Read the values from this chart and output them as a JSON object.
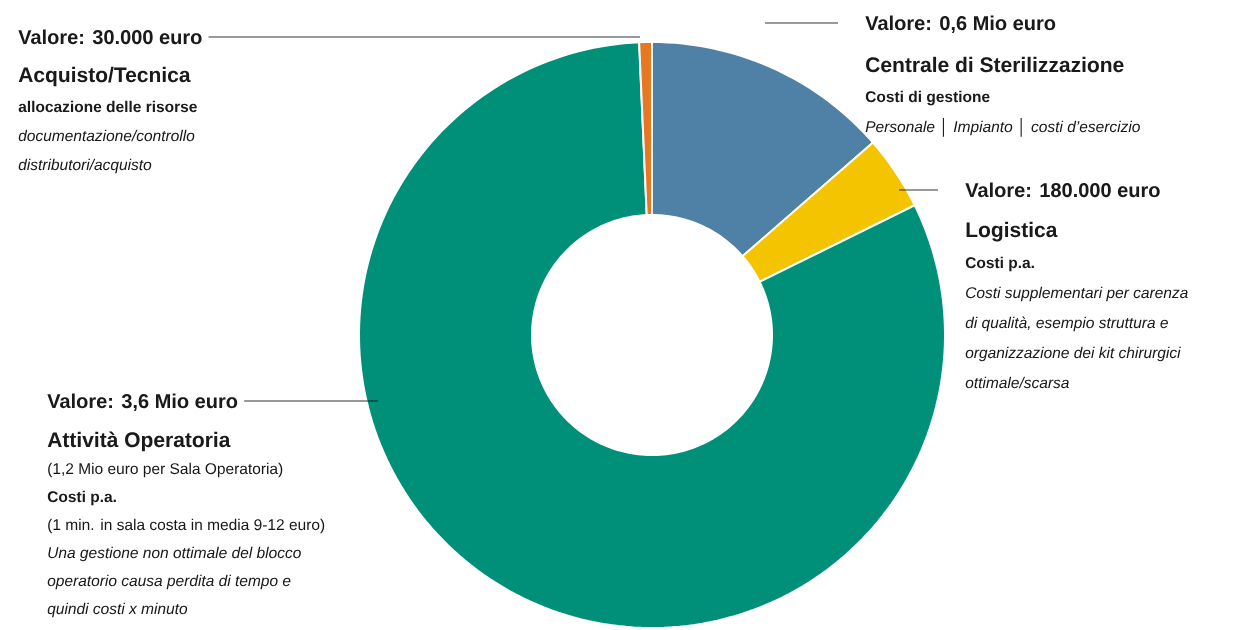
{
  "chart_data": {
    "type": "donut",
    "categories": [
      null,
      null,
      null,
      null
    ],
    "values": [
      13.6,
      4.1,
      81.6,
      0.7
    ],
    "colors": [
      "#4f81a6",
      "#f5c400",
      "#00907a",
      "#e87722"
    ],
    "annotations": [
      "Valore: 30.000 euro",
      "Acquisto/Tecnica",
      "allocazione delle risorse",
      "documentazione/controllo",
      "distributori/acquisto",
      "Valore: 0,6 Mio euro",
      "Centrale di Sterilizzazione",
      "Costi di gestione",
      "Personale │ Impianto │ costi d’esercizio",
      "Valore: 180.000 euro",
      "Logistica",
      "Costi p.a.",
      "Costi supplementari per carenza",
      "di qualità, esempio struttura e",
      "organizzazione dei kit chirurgici",
      "ottimale/scarsa",
      "Valore: 3,6 Mio euro",
      "Attività Operatoria",
      "(1,2 Mio euro per Sala Operatoria)",
      "Costi p.a.",
      "(1 min. in sala costa in media 9-12 euro)",
      "Una gestione non ottimale del blocco",
      "operatorio causa perdita di tempo e",
      "quindi costi x minuto"
    ]
  }
}
